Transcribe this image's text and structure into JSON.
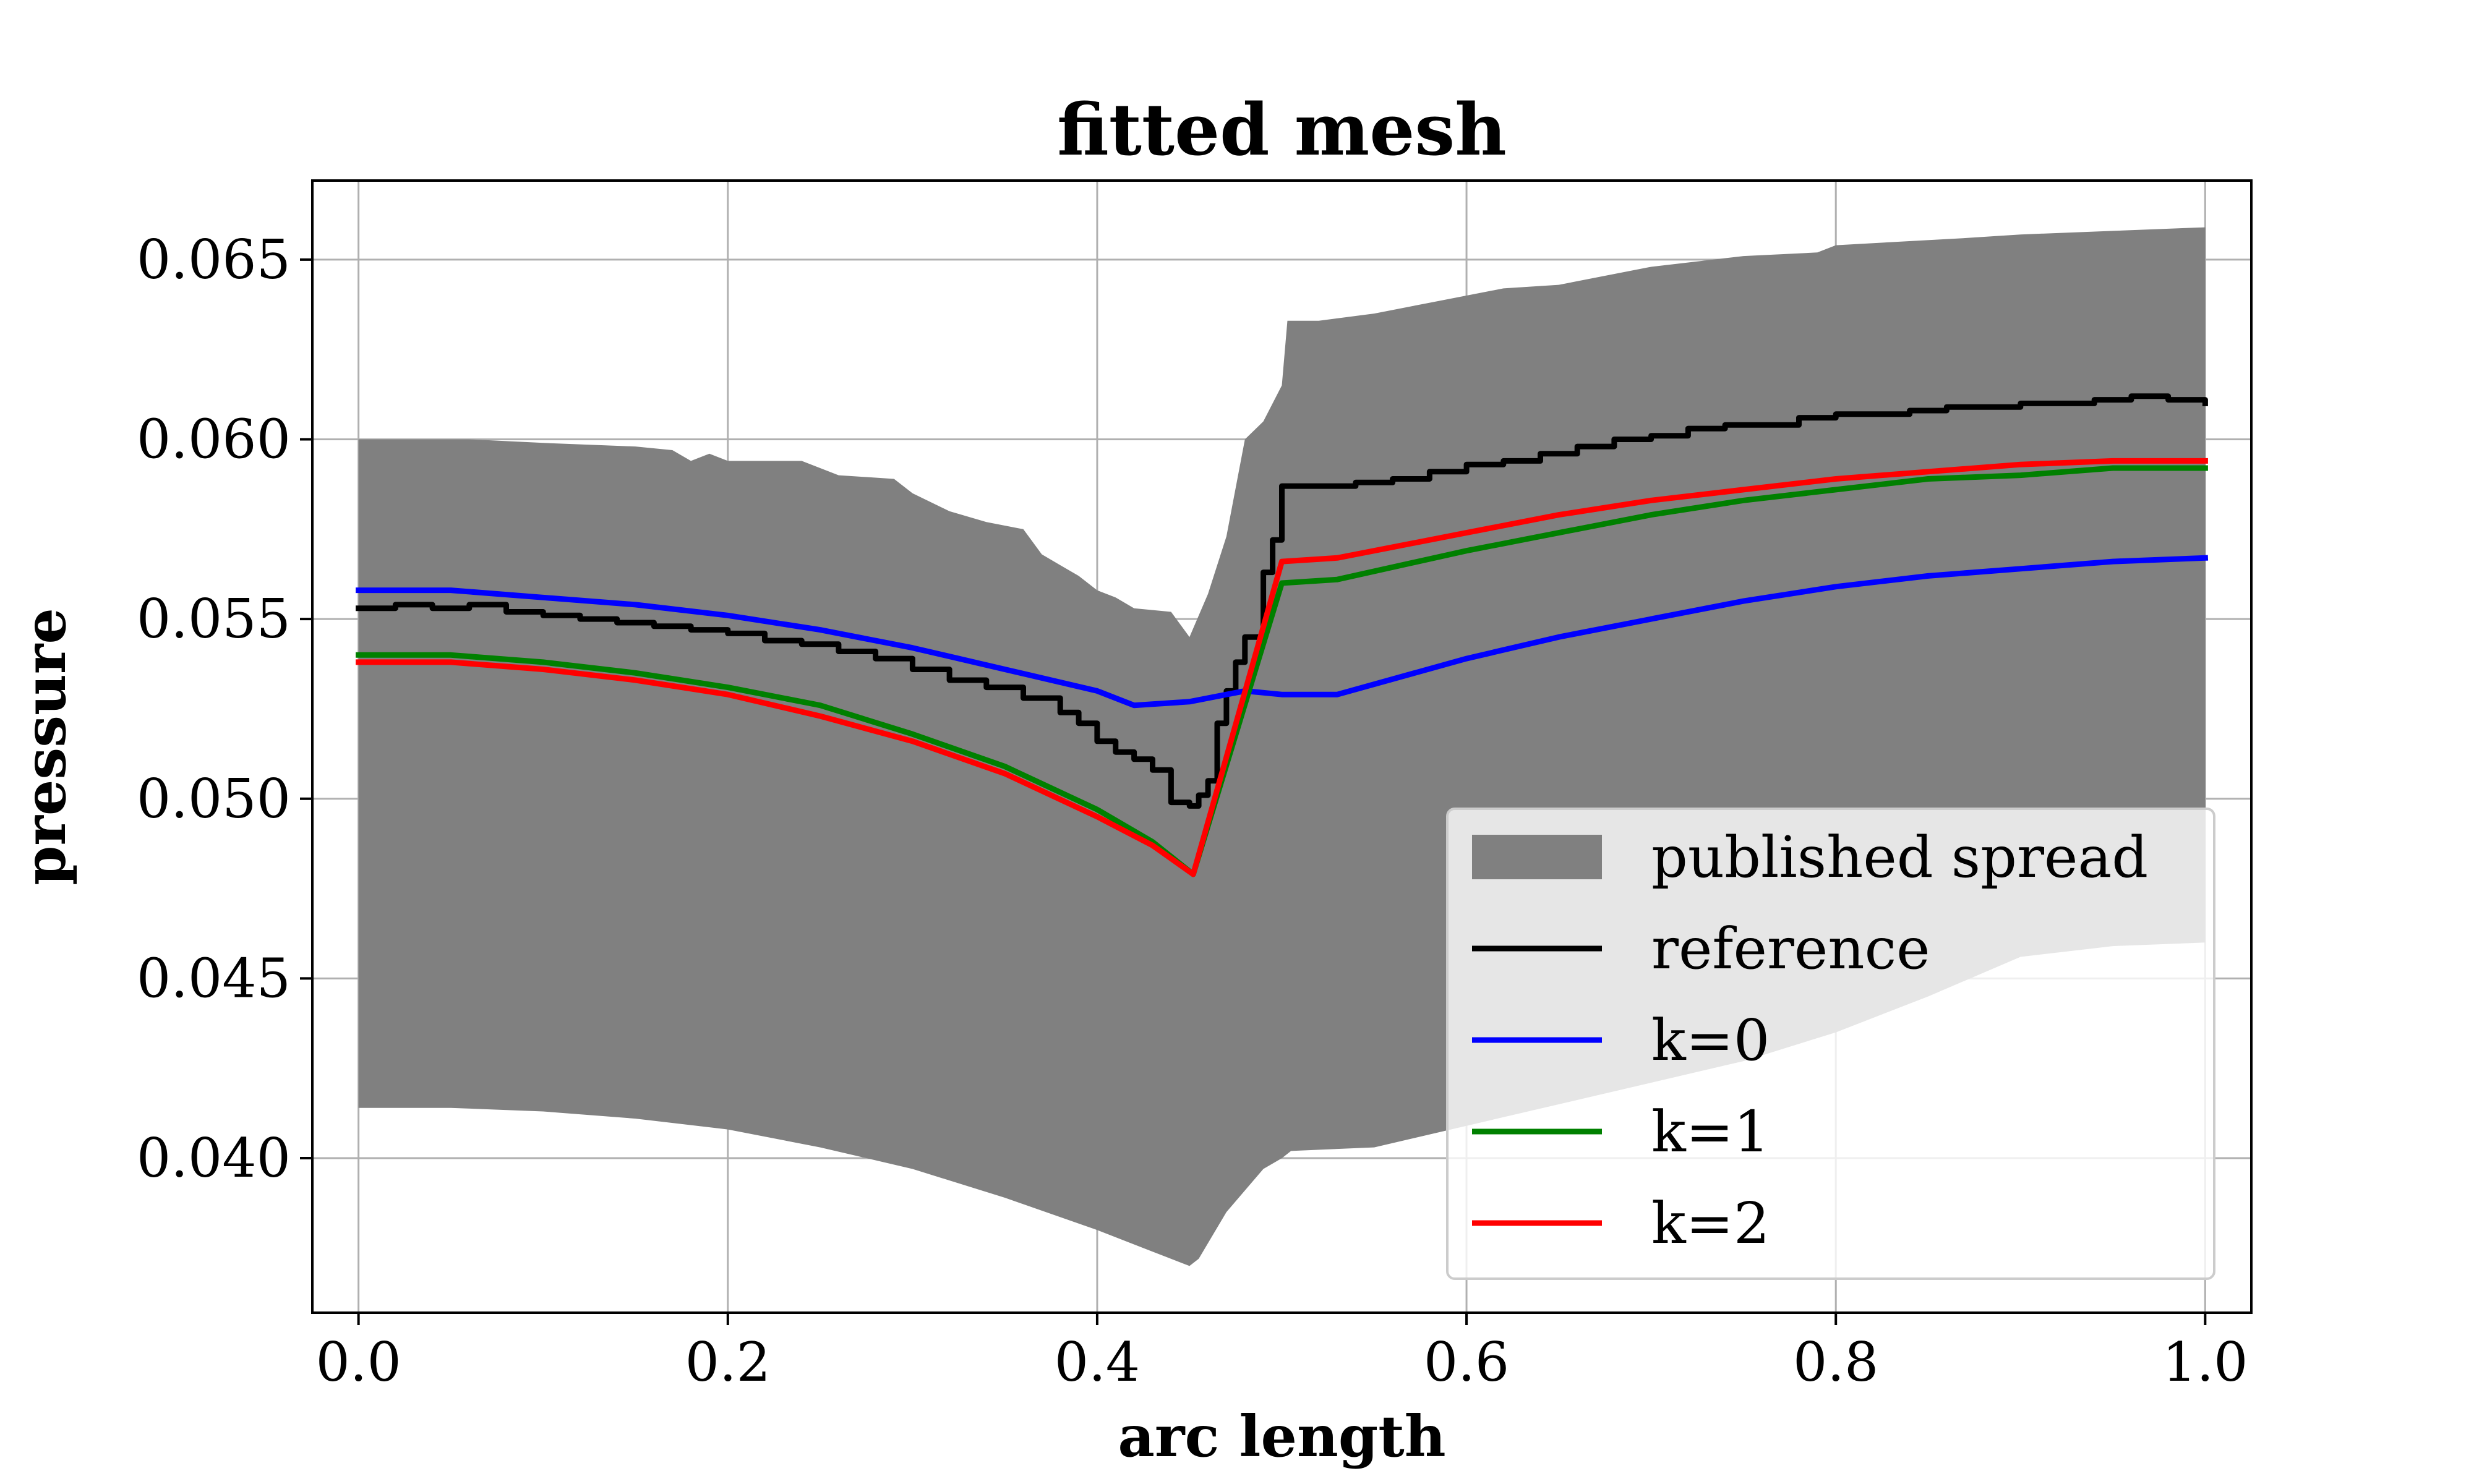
{
  "chart_data": {
    "type": "line",
    "title": "fitted mesh",
    "xlabel": "arc length",
    "ylabel": "pressure",
    "xlim": [
      -0.025,
      1.025
    ],
    "ylim": [
      0.0357,
      0.0672
    ],
    "xticks": [
      0.0,
      0.2,
      0.4,
      0.6,
      0.8,
      1.0
    ],
    "xtick_labels": [
      "0.0",
      "0.2",
      "0.4",
      "0.6",
      "0.8",
      "1.0"
    ],
    "yticks": [
      0.04,
      0.045,
      0.05,
      0.055,
      0.06,
      0.065
    ],
    "ytick_labels": [
      "0.040",
      "0.045",
      "0.050",
      "0.055",
      "0.060",
      "0.065"
    ],
    "grid": true,
    "legend_position": "lower-right",
    "band": {
      "name": "published spread",
      "color": "#808080",
      "upper": [
        [
          0.0,
          0.06
        ],
        [
          0.06,
          0.06
        ],
        [
          0.1,
          0.0599
        ],
        [
          0.15,
          0.0598
        ],
        [
          0.17,
          0.0597
        ],
        [
          0.18,
          0.0594
        ],
        [
          0.19,
          0.0596
        ],
        [
          0.2,
          0.0594
        ],
        [
          0.24,
          0.0594
        ],
        [
          0.26,
          0.059
        ],
        [
          0.29,
          0.0589
        ],
        [
          0.3,
          0.0585
        ],
        [
          0.32,
          0.058
        ],
        [
          0.34,
          0.0577
        ],
        [
          0.36,
          0.0575
        ],
        [
          0.37,
          0.0568
        ],
        [
          0.38,
          0.0565
        ],
        [
          0.39,
          0.0562
        ],
        [
          0.4,
          0.0558
        ],
        [
          0.41,
          0.0556
        ],
        [
          0.42,
          0.0553
        ],
        [
          0.44,
          0.0552
        ],
        [
          0.45,
          0.0545
        ],
        [
          0.46,
          0.0557
        ],
        [
          0.465,
          0.0565
        ],
        [
          0.47,
          0.0573
        ],
        [
          0.48,
          0.06
        ],
        [
          0.49,
          0.0605
        ],
        [
          0.5,
          0.0615
        ],
        [
          0.503,
          0.0633
        ],
        [
          0.52,
          0.0633
        ],
        [
          0.55,
          0.0635
        ],
        [
          0.58,
          0.0638
        ],
        [
          0.6,
          0.064
        ],
        [
          0.62,
          0.0642
        ],
        [
          0.65,
          0.0643
        ],
        [
          0.7,
          0.0648
        ],
        [
          0.75,
          0.0651
        ],
        [
          0.79,
          0.0652
        ],
        [
          0.8,
          0.0654
        ],
        [
          0.87,
          0.0656
        ],
        [
          0.9,
          0.0657
        ],
        [
          0.95,
          0.0658
        ],
        [
          1.0,
          0.0659
        ]
      ],
      "lower": [
        [
          0.0,
          0.0414
        ],
        [
          0.05,
          0.0414
        ],
        [
          0.1,
          0.0413
        ],
        [
          0.15,
          0.0411
        ],
        [
          0.2,
          0.0408
        ],
        [
          0.25,
          0.0403
        ],
        [
          0.3,
          0.0397
        ],
        [
          0.35,
          0.0389
        ],
        [
          0.4,
          0.038
        ],
        [
          0.43,
          0.0374
        ],
        [
          0.45,
          0.037
        ],
        [
          0.455,
          0.0372
        ],
        [
          0.47,
          0.0385
        ],
        [
          0.49,
          0.0397
        ],
        [
          0.5,
          0.04
        ],
        [
          0.505,
          0.0402
        ],
        [
          0.55,
          0.0403
        ],
        [
          0.6,
          0.0409
        ],
        [
          0.65,
          0.0415
        ],
        [
          0.7,
          0.0421
        ],
        [
          0.75,
          0.0427
        ],
        [
          0.8,
          0.0435
        ],
        [
          0.85,
          0.0445
        ],
        [
          0.9,
          0.0456
        ],
        [
          0.95,
          0.0459
        ],
        [
          1.0,
          0.046
        ]
      ]
    },
    "series": [
      {
        "name": "reference",
        "color": "#000000",
        "step": true,
        "points": [
          [
            0.0,
            0.0553
          ],
          [
            0.02,
            0.0554
          ],
          [
            0.04,
            0.0553
          ],
          [
            0.06,
            0.0554
          ],
          [
            0.08,
            0.0552
          ],
          [
            0.1,
            0.0551
          ],
          [
            0.12,
            0.055
          ],
          [
            0.14,
            0.0549
          ],
          [
            0.16,
            0.0548
          ],
          [
            0.18,
            0.0547
          ],
          [
            0.2,
            0.0546
          ],
          [
            0.22,
            0.0544
          ],
          [
            0.24,
            0.0543
          ],
          [
            0.26,
            0.0541
          ],
          [
            0.28,
            0.0539
          ],
          [
            0.3,
            0.0536
          ],
          [
            0.32,
            0.0533
          ],
          [
            0.34,
            0.0531
          ],
          [
            0.36,
            0.0528
          ],
          [
            0.38,
            0.0524
          ],
          [
            0.39,
            0.0521
          ],
          [
            0.4,
            0.0516
          ],
          [
            0.41,
            0.0513
          ],
          [
            0.42,
            0.0511
          ],
          [
            0.43,
            0.0508
          ],
          [
            0.44,
            0.0499
          ],
          [
            0.45,
            0.0498
          ],
          [
            0.455,
            0.0501
          ],
          [
            0.46,
            0.0505
          ],
          [
            0.465,
            0.0521
          ],
          [
            0.47,
            0.053
          ],
          [
            0.475,
            0.0538
          ],
          [
            0.48,
            0.0545
          ],
          [
            0.49,
            0.0563
          ],
          [
            0.495,
            0.0572
          ],
          [
            0.5,
            0.0587
          ],
          [
            0.52,
            0.0587
          ],
          [
            0.54,
            0.0588
          ],
          [
            0.56,
            0.0589
          ],
          [
            0.58,
            0.0591
          ],
          [
            0.6,
            0.0593
          ],
          [
            0.62,
            0.0594
          ],
          [
            0.64,
            0.0596
          ],
          [
            0.66,
            0.0598
          ],
          [
            0.68,
            0.06
          ],
          [
            0.7,
            0.0601
          ],
          [
            0.72,
            0.0603
          ],
          [
            0.74,
            0.0604
          ],
          [
            0.76,
            0.0604
          ],
          [
            0.78,
            0.0606
          ],
          [
            0.8,
            0.0607
          ],
          [
            0.82,
            0.0607
          ],
          [
            0.84,
            0.0608
          ],
          [
            0.86,
            0.0609
          ],
          [
            0.88,
            0.0609
          ],
          [
            0.9,
            0.061
          ],
          [
            0.92,
            0.061
          ],
          [
            0.94,
            0.0611
          ],
          [
            0.96,
            0.0612
          ],
          [
            0.98,
            0.0611
          ],
          [
            1.0,
            0.061
          ]
        ]
      },
      {
        "name": "k=0",
        "color": "#0000ff",
        "points": [
          [
            0.0,
            0.0558
          ],
          [
            0.05,
            0.0558
          ],
          [
            0.1,
            0.0556
          ],
          [
            0.15,
            0.0554
          ],
          [
            0.2,
            0.0551
          ],
          [
            0.25,
            0.0547
          ],
          [
            0.3,
            0.0542
          ],
          [
            0.35,
            0.0536
          ],
          [
            0.4,
            0.053
          ],
          [
            0.42,
            0.0526
          ],
          [
            0.45,
            0.0527
          ],
          [
            0.47,
            0.0529
          ],
          [
            0.48,
            0.053
          ],
          [
            0.5,
            0.0529
          ],
          [
            0.53,
            0.0529
          ],
          [
            0.6,
            0.0539
          ],
          [
            0.65,
            0.0545
          ],
          [
            0.7,
            0.055
          ],
          [
            0.75,
            0.0555
          ],
          [
            0.8,
            0.0559
          ],
          [
            0.85,
            0.0562
          ],
          [
            0.9,
            0.0564
          ],
          [
            0.95,
            0.0566
          ],
          [
            1.0,
            0.0567
          ]
        ]
      },
      {
        "name": "k=1",
        "color": "#008000",
        "points": [
          [
            0.0,
            0.054
          ],
          [
            0.05,
            0.054
          ],
          [
            0.1,
            0.0538
          ],
          [
            0.15,
            0.0535
          ],
          [
            0.2,
            0.0531
          ],
          [
            0.25,
            0.0526
          ],
          [
            0.3,
            0.0518
          ],
          [
            0.35,
            0.0509
          ],
          [
            0.4,
            0.0497
          ],
          [
            0.43,
            0.0488
          ],
          [
            0.452,
            0.0479
          ],
          [
            0.5,
            0.056
          ],
          [
            0.53,
            0.0561
          ],
          [
            0.6,
            0.0569
          ],
          [
            0.65,
            0.0574
          ],
          [
            0.7,
            0.0579
          ],
          [
            0.75,
            0.0583
          ],
          [
            0.8,
            0.0586
          ],
          [
            0.85,
            0.0589
          ],
          [
            0.9,
            0.059
          ],
          [
            0.95,
            0.0592
          ],
          [
            1.0,
            0.0592
          ]
        ]
      },
      {
        "name": "k=2",
        "color": "#ff0000",
        "points": [
          [
            0.0,
            0.0538
          ],
          [
            0.05,
            0.0538
          ],
          [
            0.1,
            0.0536
          ],
          [
            0.15,
            0.0533
          ],
          [
            0.2,
            0.0529
          ],
          [
            0.25,
            0.0523
          ],
          [
            0.3,
            0.0516
          ],
          [
            0.35,
            0.0507
          ],
          [
            0.4,
            0.0495
          ],
          [
            0.43,
            0.0487
          ],
          [
            0.452,
            0.0479
          ],
          [
            0.5,
            0.0566
          ],
          [
            0.53,
            0.0567
          ],
          [
            0.6,
            0.0574
          ],
          [
            0.65,
            0.0579
          ],
          [
            0.7,
            0.0583
          ],
          [
            0.75,
            0.0586
          ],
          [
            0.8,
            0.0589
          ],
          [
            0.85,
            0.0591
          ],
          [
            0.9,
            0.0593
          ],
          [
            0.95,
            0.0594
          ],
          [
            1.0,
            0.0594
          ]
        ]
      }
    ]
  }
}
